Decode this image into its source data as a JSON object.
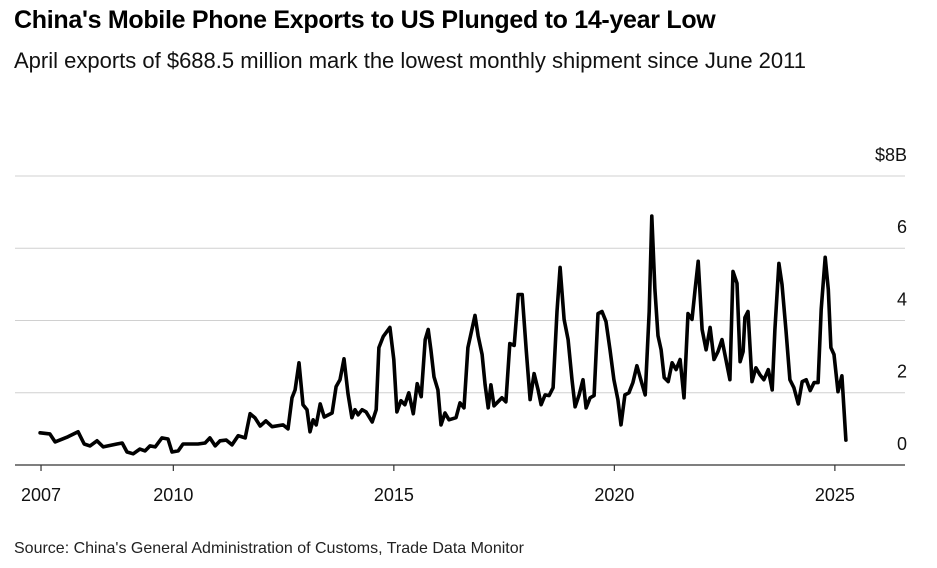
{
  "chart_data": {
    "type": "line",
    "title": "China's Mobile Phone Exports to US Plunged to 14-year Low",
    "subtitle": "April exports of $688.5 million mark the lowest monthly shipment since June 2011",
    "source": "Source: China's General Administration of Customs, Trade Data Monitor",
    "color": "#000000",
    "grid": true,
    "xlim": [
      2006.41,
      2026.59
    ],
    "xticks": [
      2007,
      2010,
      2015,
      2020,
      2025
    ],
    "ylim": [
      0,
      8
    ],
    "yticks": [
      0,
      2,
      4,
      6,
      {
        "value": 8,
        "label": "$8B"
      }
    ],
    "x": [
      2006.98,
      2007.2,
      2007.32,
      2007.61,
      2007.84,
      2007.98,
      2008.11,
      2008.27,
      2008.41,
      2008.72,
      2008.84,
      2008.95,
      2009.09,
      2009.24,
      2009.36,
      2009.47,
      2009.59,
      2009.74,
      2009.88,
      2009.97,
      2010.11,
      2010.22,
      2010.56,
      2010.72,
      2010.83,
      2010.95,
      2011.06,
      2011.2,
      2011.33,
      2011.47,
      2011.63,
      2011.74,
      2011.85,
      2011.97,
      2012.1,
      2012.24,
      2012.49,
      2012.6,
      2012.69,
      2012.76,
      2012.85,
      2012.94,
      2013.03,
      2013.1,
      2013.17,
      2013.24,
      2013.33,
      2013.42,
      2013.6,
      2013.69,
      2013.78,
      2013.87,
      2013.96,
      2014.05,
      2014.12,
      2014.19,
      2014.28,
      2014.37,
      2014.51,
      2014.6,
      2014.66,
      2014.76,
      2014.91,
      2015.0,
      2015.07,
      2015.16,
      2015.25,
      2015.34,
      2015.44,
      2015.53,
      2015.62,
      2015.71,
      2015.78,
      2015.84,
      2015.91,
      2016.0,
      2016.07,
      2016.16,
      2016.25,
      2016.41,
      2016.5,
      2016.59,
      2016.68,
      2016.84,
      2016.91,
      2017.0,
      2017.07,
      2017.14,
      2017.2,
      2017.27,
      2017.45,
      2017.54,
      2017.63,
      2017.73,
      2017.82,
      2017.91,
      2018.0,
      2018.09,
      2018.18,
      2018.27,
      2018.34,
      2018.43,
      2018.52,
      2018.61,
      2018.7,
      2018.77,
      2018.86,
      2018.95,
      2019.04,
      2019.11,
      2019.2,
      2019.29,
      2019.36,
      2019.45,
      2019.54,
      2019.63,
      2019.72,
      2019.81,
      2019.9,
      2019.99,
      2020.08,
      2020.15,
      2020.24,
      2020.33,
      2020.42,
      2020.51,
      2020.6,
      2020.7,
      2020.79,
      2020.85,
      2020.92,
      2020.99,
      2021.06,
      2021.13,
      2021.22,
      2021.31,
      2021.4,
      2021.49,
      2021.58,
      2021.67,
      2021.76,
      2021.83,
      2021.9,
      2021.99,
      2022.08,
      2022.17,
      2022.26,
      2022.35,
      2022.44,
      2022.53,
      2022.62,
      2022.69,
      2022.78,
      2022.85,
      2022.92,
      2022.96,
      2023.03,
      2023.12,
      2023.21,
      2023.3,
      2023.39,
      2023.49,
      2023.58,
      2023.64,
      2023.73,
      2023.8,
      2023.89,
      2023.98,
      2024.07,
      2024.17,
      2024.26,
      2024.35,
      2024.44,
      2024.53,
      2024.62,
      2024.69,
      2024.78,
      2024.85,
      2024.91,
      2024.98,
      2025.07,
      2025.16,
      2025.25
    ],
    "values": [
      0.89,
      0.86,
      0.64,
      0.78,
      0.92,
      0.58,
      0.53,
      0.67,
      0.5,
      0.58,
      0.61,
      0.36,
      0.31,
      0.44,
      0.39,
      0.53,
      0.5,
      0.75,
      0.72,
      0.36,
      0.39,
      0.58,
      0.58,
      0.61,
      0.75,
      0.53,
      0.67,
      0.69,
      0.56,
      0.81,
      0.75,
      1.42,
      1.31,
      1.08,
      1.22,
      1.06,
      1.11,
      1.0,
      1.86,
      2.08,
      2.83,
      1.67,
      1.53,
      0.92,
      1.25,
      1.11,
      1.69,
      1.33,
      1.44,
      2.17,
      2.36,
      2.94,
      1.97,
      1.31,
      1.53,
      1.39,
      1.53,
      1.47,
      1.19,
      1.53,
      3.25,
      3.56,
      3.81,
      2.92,
      1.47,
      1.78,
      1.67,
      2.0,
      1.42,
      2.25,
      1.89,
      3.47,
      3.75,
      3.19,
      2.44,
      2.08,
      1.11,
      1.44,
      1.25,
      1.31,
      1.72,
      1.58,
      3.25,
      4.14,
      3.58,
      3.06,
      2.22,
      1.58,
      2.22,
      1.64,
      1.86,
      1.75,
      3.36,
      3.31,
      4.72,
      4.72,
      3.19,
      1.81,
      2.53,
      2.08,
      1.67,
      1.94,
      1.92,
      2.14,
      4.25,
      5.47,
      4.03,
      3.47,
      2.36,
      1.61,
      1.94,
      2.36,
      1.58,
      1.86,
      1.92,
      4.19,
      4.25,
      3.97,
      3.19,
      2.36,
      1.81,
      1.11,
      1.94,
      2.0,
      2.28,
      2.75,
      2.36,
      1.94,
      4.25,
      6.89,
      4.86,
      3.58,
      3.19,
      2.42,
      2.31,
      2.83,
      2.64,
      2.92,
      1.86,
      4.19,
      4.03,
      4.86,
      5.64,
      3.75,
      3.19,
      3.81,
      2.92,
      3.14,
      3.47,
      2.92,
      2.36,
      5.36,
      5.03,
      2.86,
      3.14,
      4.08,
      4.25,
      2.31,
      2.69,
      2.5,
      2.36,
      2.64,
      2.08,
      3.75,
      5.58,
      5.0,
      3.75,
      2.36,
      2.14,
      1.69,
      2.31,
      2.36,
      2.06,
      2.28,
      2.28,
      4.31,
      5.75,
      4.86,
      3.25,
      3.06,
      2.03,
      2.47,
      0.69
    ]
  }
}
